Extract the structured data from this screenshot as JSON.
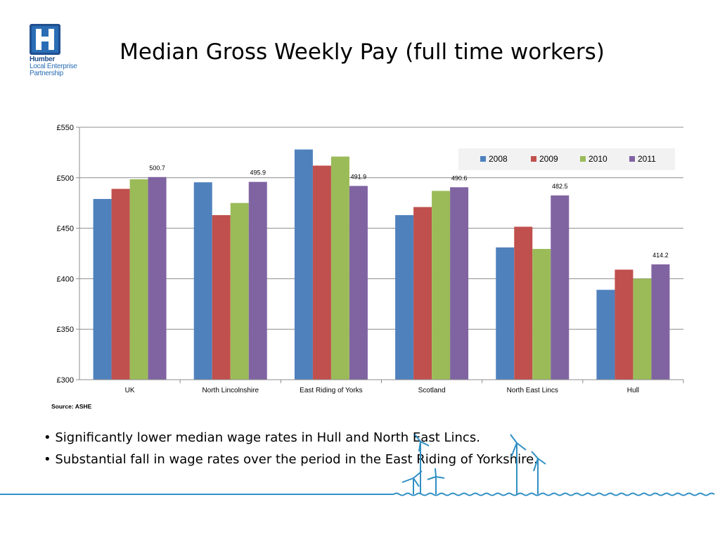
{
  "logo": {
    "lines": [
      "Humber",
      "Local Enterprise",
      "Partnership"
    ],
    "colors": {
      "primary": "#2a6db5",
      "dark": "#1f4f8f"
    }
  },
  "title": "Median Gross Weekly Pay (full time workers)",
  "source": "Source: ASHE",
  "bullets": [
    "Significantly lower median wage rates in Hull and North East Lincs.",
    "Substantial fall in wage rates over the period in the East Riding of Yorkshire."
  ],
  "chart_data": {
    "type": "bar",
    "categories": [
      "UK",
      "North Lincolnshire",
      "East Riding of Yorks",
      "Scotland",
      "North East Lincs",
      "Hull"
    ],
    "series": [
      {
        "name": "2008",
        "color": "#4f81bd",
        "values": [
          479,
          495.5,
          528,
          463,
          431,
          389
        ]
      },
      {
        "name": "2009",
        "color": "#c0504d",
        "values": [
          489,
          463,
          512,
          471,
          451.5,
          409
        ]
      },
      {
        "name": "2010",
        "color": "#9bbb59",
        "values": [
          498.5,
          475,
          521,
          487,
          429.5,
          400
        ]
      },
      {
        "name": "2011",
        "color": "#8064a2",
        "values": [
          500.7,
          495.9,
          491.9,
          490.6,
          482.5,
          414.2
        ]
      }
    ],
    "data_labels_series": "2011",
    "data_labels": [
      "500.7",
      "495.9",
      "491.9",
      "490.6",
      "482.5",
      "414.2"
    ],
    "y_ticks": [
      "£550",
      "£500",
      "£450",
      "£400",
      "£350",
      "£300"
    ],
    "ylim": [
      300,
      550
    ],
    "y_step": 50,
    "grid": true,
    "legend_position": "top-right"
  }
}
